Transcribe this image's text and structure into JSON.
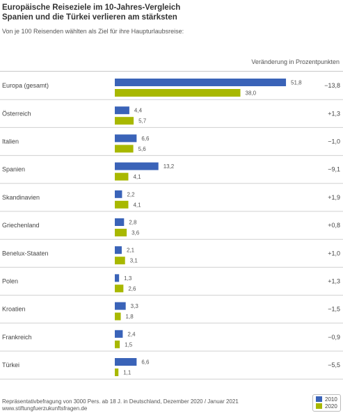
{
  "header": {
    "title_line1": "Europäische Reiseziele im 10-Jahres-Vergleich",
    "title_line2": "Spanien und die Türkei verlieren am stärksten",
    "subtitle": "Von je 100 Reisenden wählten als Ziel für ihre Haupturlaubsreise:",
    "change_column_label": "Veränderung in Prozentpunkten"
  },
  "footer": {
    "note": "Repräsentativbefragung von 3000 Pers. ab 18 J. in Deutschland, Dezember 2020 / Januar 2021",
    "url": "www.stiftungfuerzukunftsfragen.de"
  },
  "colors": {
    "series_2010": "#3a63b8",
    "series_2020": "#a8b800"
  },
  "chart_data": {
    "type": "bar",
    "orientation": "horizontal",
    "categories": [
      "Europa (gesamt)",
      "Österreich",
      "Italien",
      "Spanien",
      "Skandinavien",
      "Griechenland",
      "Benelux-Staaten",
      "Polen",
      "Kroatien",
      "Frankreich",
      "Türkei"
    ],
    "series": [
      {
        "name": "2010",
        "values": [
          51.8,
          4.4,
          6.6,
          13.2,
          2.2,
          2.8,
          2.1,
          1.3,
          3.3,
          2.4,
          6.6
        ],
        "labels": [
          "51,8",
          "4,4",
          "6,6",
          "13,2",
          "2,2",
          "2,8",
          "2,1",
          "1,3",
          "3,3",
          "2,4",
          "6,6"
        ]
      },
      {
        "name": "2020",
        "values": [
          38.0,
          5.7,
          5.6,
          4.1,
          4.1,
          3.6,
          3.1,
          2.6,
          1.8,
          1.5,
          1.1
        ],
        "labels": [
          "38,0",
          "5,7",
          "5,6",
          "4,1",
          "4,1",
          "3,6",
          "3,1",
          "2,6",
          "1,8",
          "1,5",
          "1,1"
        ]
      }
    ],
    "change": [
      "−13,8",
      "+1,3",
      "−1,0",
      "−9,1",
      "+1,9",
      "+0,8",
      "+1,0",
      "+1,3",
      "−1,5",
      "−0,9",
      "−5,5"
    ],
    "legend_position": "bottom-right"
  }
}
